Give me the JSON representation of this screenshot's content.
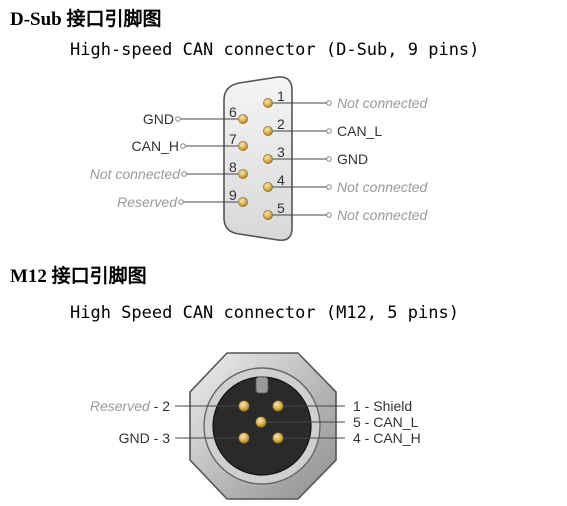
{
  "dsub": {
    "heading": "D-Sub 接口引脚图",
    "subtitle": "High-speed CAN connector (D-Sub, 9 pins)",
    "pins": [
      {
        "num": "1",
        "label": "Not connected"
      },
      {
        "num": "2",
        "label": "CAN_L"
      },
      {
        "num": "3",
        "label": "GND"
      },
      {
        "num": "4",
        "label": "Not connected"
      },
      {
        "num": "5",
        "label": "Not connected"
      },
      {
        "num": "6",
        "label": "GND"
      },
      {
        "num": "7",
        "label": "CAN_H"
      },
      {
        "num": "8",
        "label": "Not connected"
      },
      {
        "num": "9",
        "label": "Reserved"
      }
    ]
  },
  "m12": {
    "heading": "M12 接口引脚图",
    "subtitle": "High Speed CAN connector (M12, 5 pins)",
    "labels": {
      "pin1": "1 - Shield",
      "pin2_name": "Reserved",
      "pin2_num": " - 2",
      "pin3": "GND - 3",
      "pin4": "4 - CAN_H",
      "pin5": "5 - CAN_L"
    }
  },
  "colors": {
    "pin_gold": "#d9b25a",
    "muted_text": "#9a9a9a",
    "dark_text": "#333333",
    "connector_outline": "#555555"
  }
}
